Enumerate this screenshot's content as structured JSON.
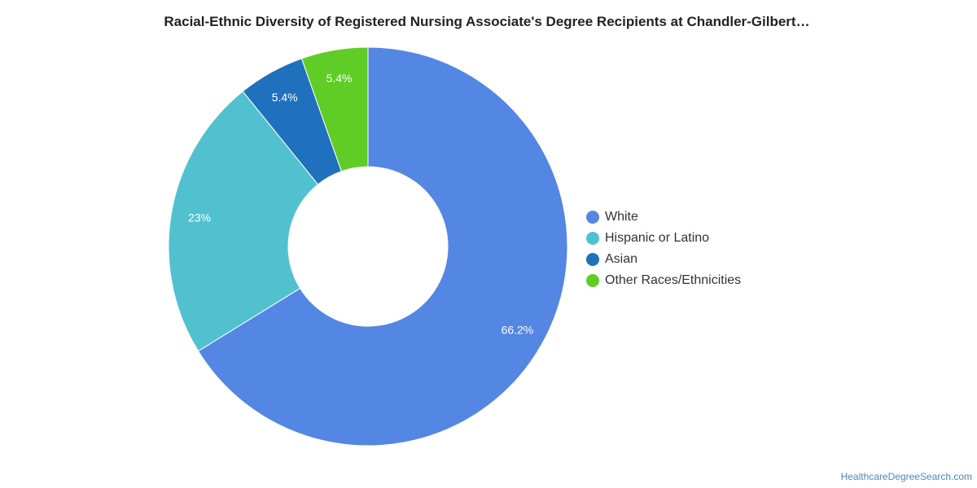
{
  "chart_data": {
    "type": "pie",
    "title": "Racial-Ethnic Diversity of Registered Nursing Associate's Degree Recipients at Chandler-Gilbert…",
    "donut": true,
    "legend_position": "right",
    "series": [
      {
        "name": "White",
        "value": 66.2,
        "label": "66.2%",
        "color": "#5486e3"
      },
      {
        "name": "Hispanic or Latino",
        "value": 23,
        "label": "23%",
        "color": "#52c1cf"
      },
      {
        "name": "Asian",
        "value": 5.4,
        "label": "5.4%",
        "color": "#1f70bd"
      },
      {
        "name": "Other Races/Ethnicities",
        "value": 5.4,
        "label": "5.4%",
        "color": "#60cc26"
      }
    ]
  },
  "source": {
    "text": "HealthcareDegreeSearch.com"
  }
}
